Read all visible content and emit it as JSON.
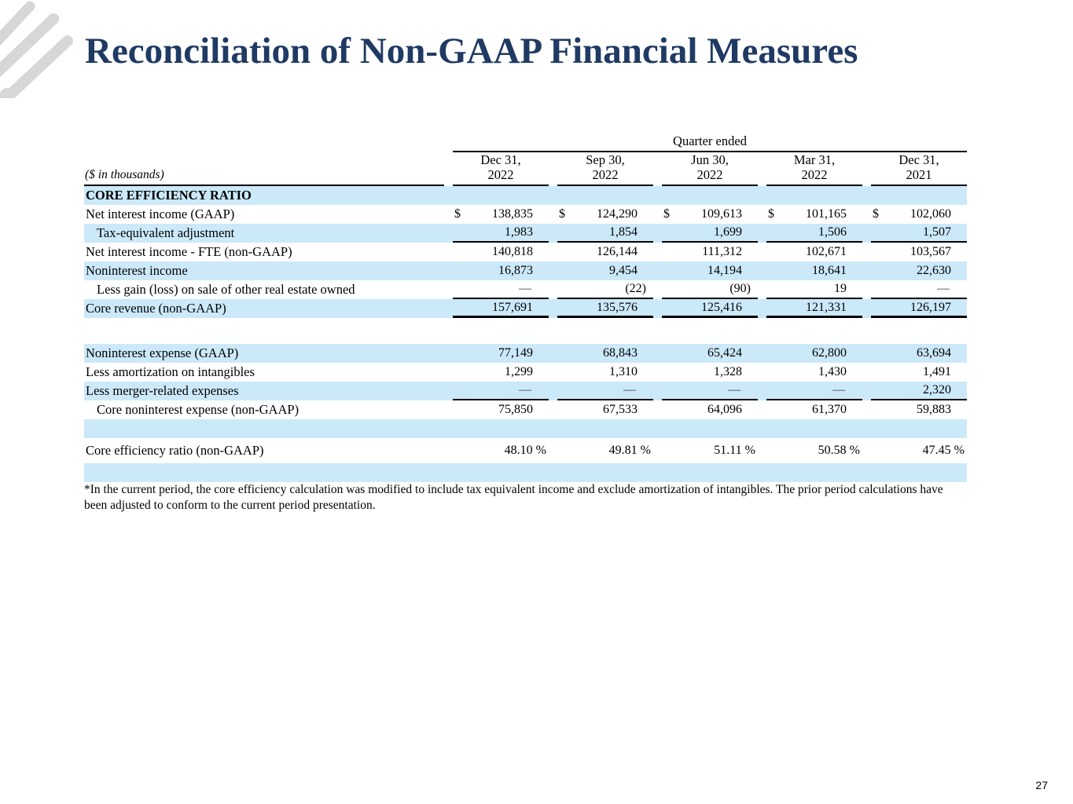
{
  "page": {
    "title": "Reconciliation of Non-GAAP Financial Measures",
    "page_number": "27",
    "footnote": "*In the current period, the core efficiency calculation was modified to include tax equivalent income and exclude amortization of intangibles. The prior period calculations have been adjusted to conform to the current period presentation."
  },
  "colors": {
    "title_navy": "#1f3a63",
    "row_shade": "#cce9fa",
    "logo_gray": "#d7d7d7"
  },
  "table": {
    "group_header": "Quarter ended",
    "units_label": "($ in thousands)",
    "columns": [
      [
        "Dec 31,",
        "2022"
      ],
      [
        "Sep 30,",
        "2022"
      ],
      [
        "Jun 30,",
        "2022"
      ],
      [
        "Mar 31,",
        "2022"
      ],
      [
        "Dec 31,",
        "2021"
      ]
    ],
    "rows": [
      {
        "type": "section",
        "label": "CORE EFFICIENCY RATIO",
        "bold": true,
        "shaded": true
      },
      {
        "type": "data",
        "label": "Net interest income (GAAP)",
        "shaded": false,
        "dollar": true,
        "values": [
          "138,835",
          "124,290",
          "109,613",
          "101,165",
          "102,060"
        ]
      },
      {
        "type": "data",
        "label": "Tax-equivalent adjustment",
        "indent": true,
        "shaded": true,
        "rule": "single",
        "values": [
          "1,983",
          "1,854",
          "1,699",
          "1,506",
          "1,507"
        ]
      },
      {
        "type": "data",
        "label": "Net interest income - FTE (non-GAAP)",
        "shaded": false,
        "values": [
          "140,818",
          "126,144",
          "111,312",
          "102,671",
          "103,567"
        ]
      },
      {
        "type": "data",
        "label": "Noninterest income",
        "shaded": true,
        "values": [
          "16,873",
          "9,454",
          "14,194",
          "18,641",
          "22,630"
        ]
      },
      {
        "type": "data",
        "label": "Less gain (loss) on sale of other real estate owned",
        "indent": true,
        "shaded": false,
        "rule": "single",
        "values": [
          "—",
          "(22)",
          "(90)",
          "19",
          "—"
        ]
      },
      {
        "type": "data",
        "label": "Core revenue (non-GAAP)",
        "shaded": true,
        "rule": "thick",
        "values": [
          "157,691",
          "135,576",
          "125,416",
          "121,331",
          "126,197"
        ]
      },
      {
        "type": "spacer",
        "height": 33
      },
      {
        "type": "data",
        "label": "Noninterest expense (GAAP)",
        "shaded": true,
        "values": [
          "77,149",
          "68,843",
          "65,424",
          "62,800",
          "63,694"
        ]
      },
      {
        "type": "data",
        "label": "Less amortization on intangibles",
        "shaded": false,
        "values": [
          "1,299",
          "1,310",
          "1,328",
          "1,430",
          "1,491"
        ]
      },
      {
        "type": "data",
        "label": "Less merger-related expenses",
        "shaded": true,
        "rule": "single",
        "values": [
          "—",
          "—",
          "—",
          "—",
          "2,320"
        ]
      },
      {
        "type": "data",
        "label": "Core noninterest expense (non-GAAP)",
        "indent": true,
        "shaded": false,
        "values": [
          "75,850",
          "67,533",
          "64,096",
          "61,370",
          "59,883"
        ]
      },
      {
        "type": "empty",
        "shaded": true
      },
      {
        "type": "data",
        "label": "Core efficiency ratio (non-GAAP)",
        "shaded": false,
        "tall": true,
        "values": [
          "48.10 %",
          "49.81 %",
          "51.11 %",
          "50.58 %",
          "47.45 %"
        ]
      },
      {
        "type": "empty",
        "shaded": true
      }
    ]
  }
}
